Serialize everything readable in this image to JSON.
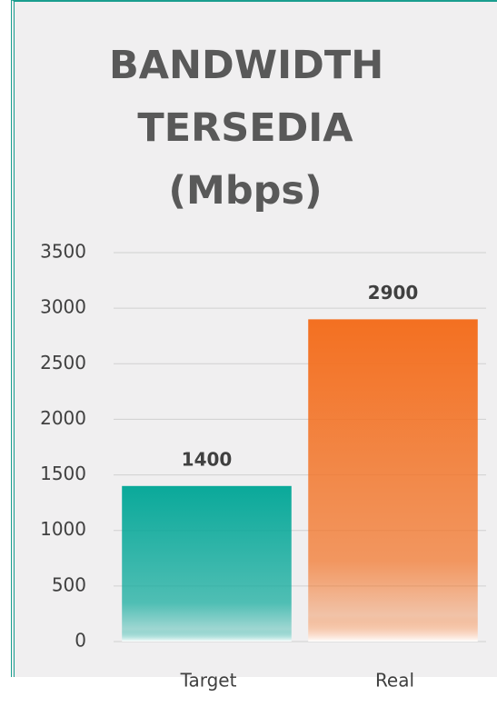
{
  "chart_data": {
    "type": "bar",
    "title": "BANDWIDTH TERSEDIA (Mbps)",
    "categories": [
      "Target",
      "Real"
    ],
    "values": [
      1400,
      2900
    ],
    "colors": [
      "#0aa99a",
      "#f37021"
    ],
    "ylim": [
      0,
      3500
    ],
    "yticks": [
      0,
      500,
      1000,
      1500,
      2000,
      2500,
      3000,
      3500
    ],
    "grid": true
  }
}
